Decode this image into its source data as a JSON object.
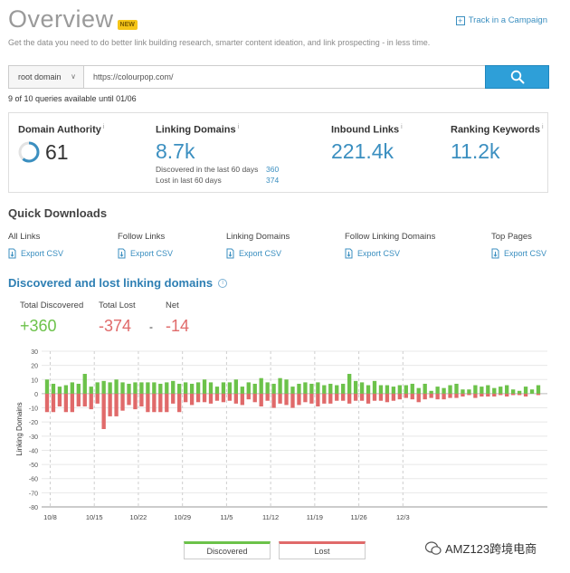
{
  "header": {
    "title": "Overview",
    "badge": "NEW",
    "campaign_link": "Track in a Campaign",
    "subtitle": "Get the data you need to do better link building research, smarter content ideation, and link prospecting - in less time."
  },
  "search": {
    "domain_type": "root domain",
    "url_value": "https://colourpop.com/",
    "queries_text": "9 of 10 queries available until 01/06"
  },
  "metrics": {
    "domain_authority": {
      "label": "Domain Authority",
      "value": "61",
      "score": 61
    },
    "linking_domains": {
      "label": "Linking Domains",
      "value": "8.7k",
      "discovered_label": "Discovered in the last 60 days",
      "discovered_value": "360",
      "lost_label": "Lost in last 60 days",
      "lost_value": "374"
    },
    "inbound_links": {
      "label": "Inbound Links",
      "value": "221.4k"
    },
    "ranking_keywords": {
      "label": "Ranking Keywords",
      "value": "11.2k"
    }
  },
  "quick_downloads": {
    "title": "Quick Downloads",
    "export_label": "Export CSV",
    "items": [
      "All Links",
      "Follow Links",
      "Linking Domains",
      "Follow Linking Domains",
      "Top Pages"
    ]
  },
  "discovered_lost": {
    "title": "Discovered and lost linking domains",
    "total_discovered_label": "Total Discovered",
    "total_discovered": "+360",
    "total_lost_label": "Total Lost",
    "total_lost": "-374",
    "net_label": "Net",
    "net": "-14",
    "separator": "-"
  },
  "colors": {
    "accent": "#3b8fc0",
    "discovered": "#6cc24a",
    "lost": "#e06a6a",
    "button": "#2e9fd8"
  },
  "icons": {
    "search": "search-icon",
    "download": "download-icon",
    "info": "info-icon",
    "plus": "plus-icon"
  },
  "chart_data": {
    "type": "bar",
    "ylabel": "Linking Domains",
    "ylim": [
      -80,
      30
    ],
    "yticks": [
      30,
      20,
      10,
      0,
      -10,
      -20,
      -30,
      -40,
      -50,
      -60,
      -70,
      -80
    ],
    "xtick_labels": [
      "10/8",
      "10/15",
      "10/22",
      "10/29",
      "11/5",
      "11/12",
      "11/19",
      "11/26",
      "12/3"
    ],
    "grid": true,
    "legend_position": "bottom",
    "series": [
      {
        "name": "Discovered",
        "values": [
          10,
          7,
          5,
          6,
          8,
          7,
          14,
          5,
          8,
          9,
          8,
          10,
          8,
          7,
          8,
          8,
          8,
          8,
          7,
          8,
          9,
          7,
          8,
          7,
          8,
          10,
          8,
          5,
          8,
          8,
          10,
          5,
          8,
          7,
          11,
          8,
          7,
          11,
          10,
          5,
          7,
          8,
          7,
          8,
          6,
          7,
          6,
          7,
          14,
          9,
          8,
          6,
          9,
          6,
          6,
          5,
          6,
          6,
          7,
          4,
          7,
          2,
          5,
          4,
          6,
          7,
          3,
          3,
          6,
          5,
          6,
          4,
          5,
          6,
          3,
          2,
          5,
          3,
          6
        ]
      },
      {
        "name": "Lost",
        "values": [
          -13,
          -13,
          -9,
          -13,
          -13,
          -9,
          -9,
          -11,
          -7,
          -25,
          -16,
          -16,
          -12,
          -8,
          -11,
          -9,
          -13,
          -13,
          -13,
          -13,
          -7,
          -13,
          -6,
          -8,
          -6,
          -6,
          -7,
          -5,
          -6,
          -5,
          -7,
          -8,
          -4,
          -6,
          -9,
          -5,
          -10,
          -7,
          -8,
          -10,
          -8,
          -6,
          -7,
          -9,
          -7,
          -7,
          -5,
          -5,
          -7,
          -5,
          -5,
          -7,
          -5,
          -5,
          -6,
          -5,
          -4,
          -3,
          -4,
          -6,
          -4,
          -3,
          -4,
          -4,
          -3,
          -3,
          -2,
          -1,
          -3,
          -2,
          -2,
          -2,
          -1,
          -2,
          -1,
          -1,
          -2,
          0,
          -1
        ]
      }
    ]
  },
  "footer": {
    "legend_discovered": "Discovered",
    "legend_lost": "Lost",
    "watermark": "AMZ123跨境电商"
  }
}
